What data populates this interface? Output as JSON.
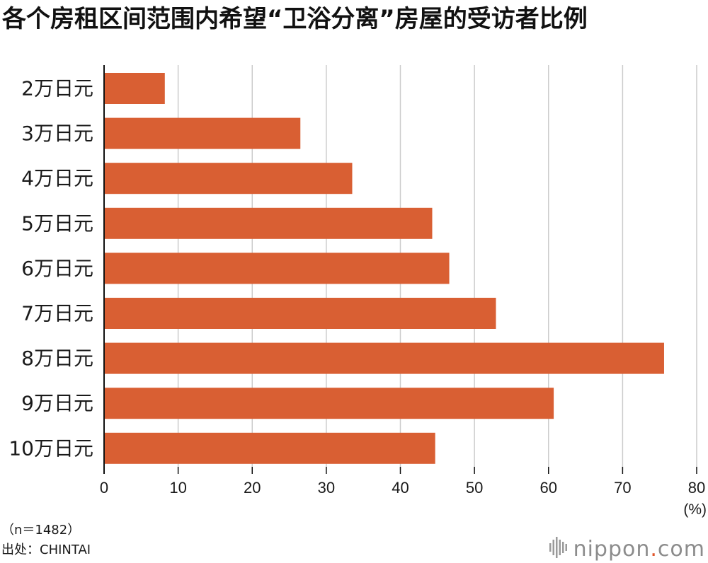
{
  "chart_data": {
    "type": "bar",
    "orientation": "horizontal",
    "title": "各个房租区间范围内希望“卫浴分离”房屋的受访者比例",
    "categories": [
      "2万日元",
      "3万日元",
      "4万日元",
      "5万日元",
      "6万日元",
      "7万日元",
      "8万日元",
      "9万日元",
      "10万日元"
    ],
    "values": [
      8.2,
      26.5,
      33.5,
      44.3,
      46.6,
      52.9,
      75.6,
      60.7,
      44.7
    ],
    "xlabel": "(%)",
    "xlim": [
      0,
      80
    ],
    "xticks": [
      0,
      10,
      20,
      30,
      40,
      50,
      60,
      70,
      80
    ],
    "grid": true,
    "colors": {
      "bar": "#D95F33",
      "grid": "#CCCCCC",
      "axis": "#111111"
    }
  },
  "notes": {
    "sample": "（n＝1482）",
    "source": "出处：CHINTAI"
  },
  "logo": {
    "name": "nippon",
    "dot": ".",
    "tld": "com",
    "text_color": "#8C8C8C",
    "dot_color": "#E0562B",
    "icon": "sound-bars-icon"
  }
}
